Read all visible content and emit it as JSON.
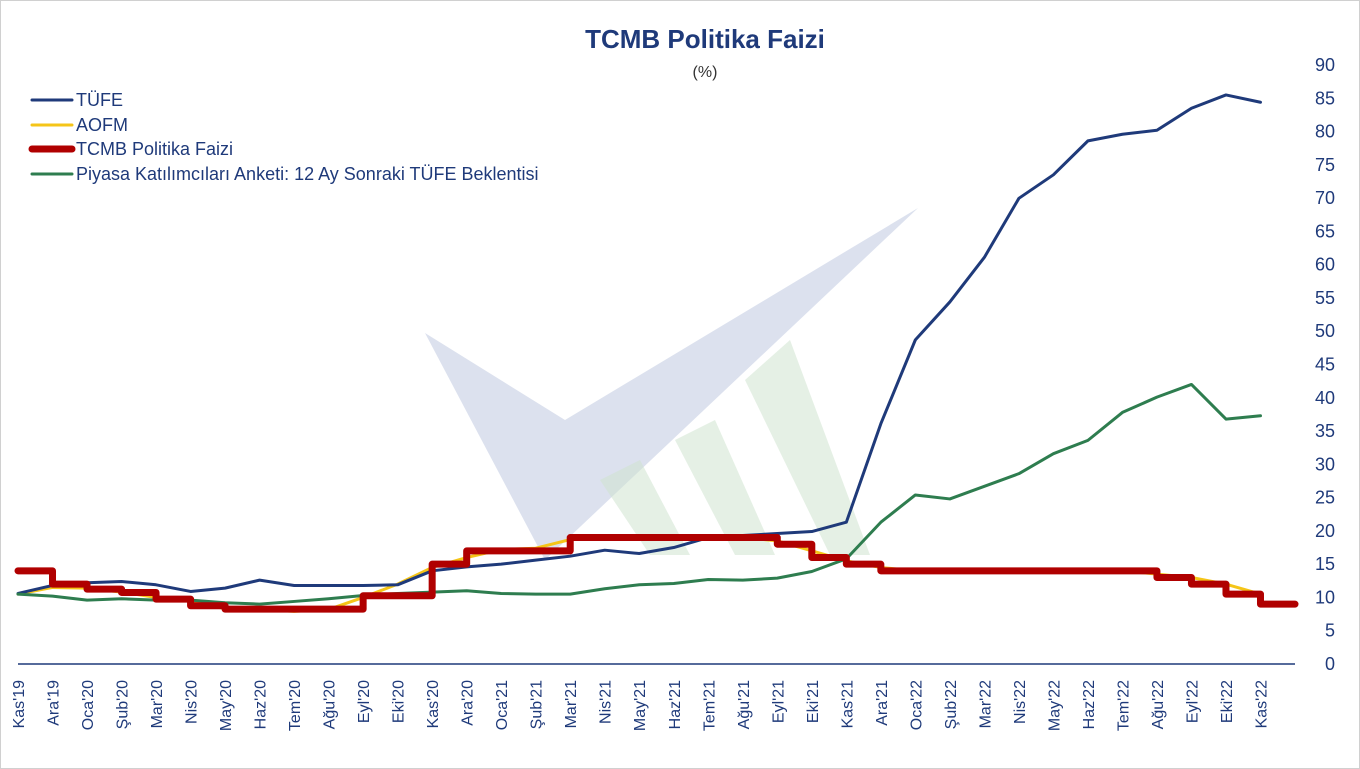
{
  "chart_data": {
    "type": "line",
    "title": "TCMB Politika Faizi",
    "subtitle": "(%)",
    "ylim": [
      0,
      90
    ],
    "yticks": [
      "0",
      "5",
      "10",
      "15",
      "20",
      "25",
      "30",
      "35",
      "40",
      "45",
      "50",
      "55",
      "60",
      "65",
      "70",
      "75",
      "80",
      "85",
      "90"
    ],
    "categories": [
      "Kas'19",
      "Ara'19",
      "Oca'20",
      "Şub'20",
      "Mar'20",
      "Nis'20",
      "May'20",
      "Haz'20",
      "Tem'20",
      "Ağu'20",
      "Eyl'20",
      "Eki'20",
      "Kas'20",
      "Ara'20",
      "Oca'21",
      "Şub'21",
      "Mar'21",
      "Nis'21",
      "May'21",
      "Haz'21",
      "Tem'21",
      "Ağu'21",
      "Eyl'21",
      "Eki'21",
      "Kas'21",
      "Ara'21",
      "Oca'22",
      "Şub'22",
      "Mar'22",
      "Nis'22",
      "May'22",
      "Haz'22",
      "Tem'22",
      "Ağu'22",
      "Eyl'22",
      "Eki'22",
      "Kas'22"
    ],
    "legend_position": "top-left",
    "series": [
      {
        "name": "TÜFE",
        "color": "#1f3a7a",
        "style": "line",
        "values": [
          10.6,
          11.8,
          12.2,
          12.4,
          11.9,
          10.9,
          11.4,
          12.6,
          11.8,
          11.8,
          11.8,
          11.9,
          14.0,
          14.6,
          15.0,
          15.6,
          16.2,
          17.1,
          16.6,
          17.5,
          19.0,
          19.3,
          19.6,
          19.9,
          21.3,
          36.1,
          48.7,
          54.4,
          61.1,
          69.97,
          73.5,
          78.6,
          79.6,
          80.2,
          83.5,
          85.5,
          84.4
        ]
      },
      {
        "name": "AOFM",
        "color": "#f5c518",
        "style": "line",
        "values": [
          10.5,
          11.5,
          11.4,
          10.8,
          10.0,
          9.5,
          8.3,
          8.2,
          7.9,
          8.2,
          10.0,
          12.0,
          14.5,
          16.0,
          17.2,
          17.4,
          18.7,
          19.1,
          19.1,
          19.1,
          19.1,
          19.0,
          18.5,
          17.0,
          15.5,
          14.5,
          14.0,
          14.0,
          14.0,
          14.0,
          14.0,
          14.0,
          14.0,
          13.5,
          13.0,
          12.0,
          10.5
        ]
      },
      {
        "name": "TCMB Politika Faizi",
        "color": "#b00000",
        "style": "step",
        "values": [
          14.0,
          12.0,
          11.25,
          10.75,
          9.75,
          8.75,
          8.25,
          8.25,
          8.25,
          8.25,
          10.25,
          10.25,
          15.0,
          17.0,
          17.0,
          17.0,
          19.0,
          19.0,
          19.0,
          19.0,
          19.0,
          19.0,
          18.0,
          16.0,
          15.0,
          14.0,
          14.0,
          14.0,
          14.0,
          14.0,
          14.0,
          14.0,
          14.0,
          13.0,
          12.0,
          10.5,
          9.0
        ]
      },
      {
        "name": "Piyasa Katılımcıları Anketi: 12 Ay Sonraki TÜFE Beklentisi",
        "color": "#2e7d4f",
        "style": "line",
        "values": [
          10.5,
          10.2,
          9.6,
          9.8,
          9.6,
          9.6,
          9.2,
          9.0,
          9.4,
          9.8,
          10.3,
          10.6,
          10.8,
          11.0,
          10.6,
          10.5,
          10.5,
          11.3,
          11.9,
          12.1,
          12.7,
          12.6,
          12.9,
          13.9,
          15.8,
          21.3,
          25.4,
          24.8,
          26.7,
          28.6,
          31.6,
          33.6,
          37.8,
          40.1,
          42.0,
          36.8,
          37.3
        ]
      }
    ]
  }
}
